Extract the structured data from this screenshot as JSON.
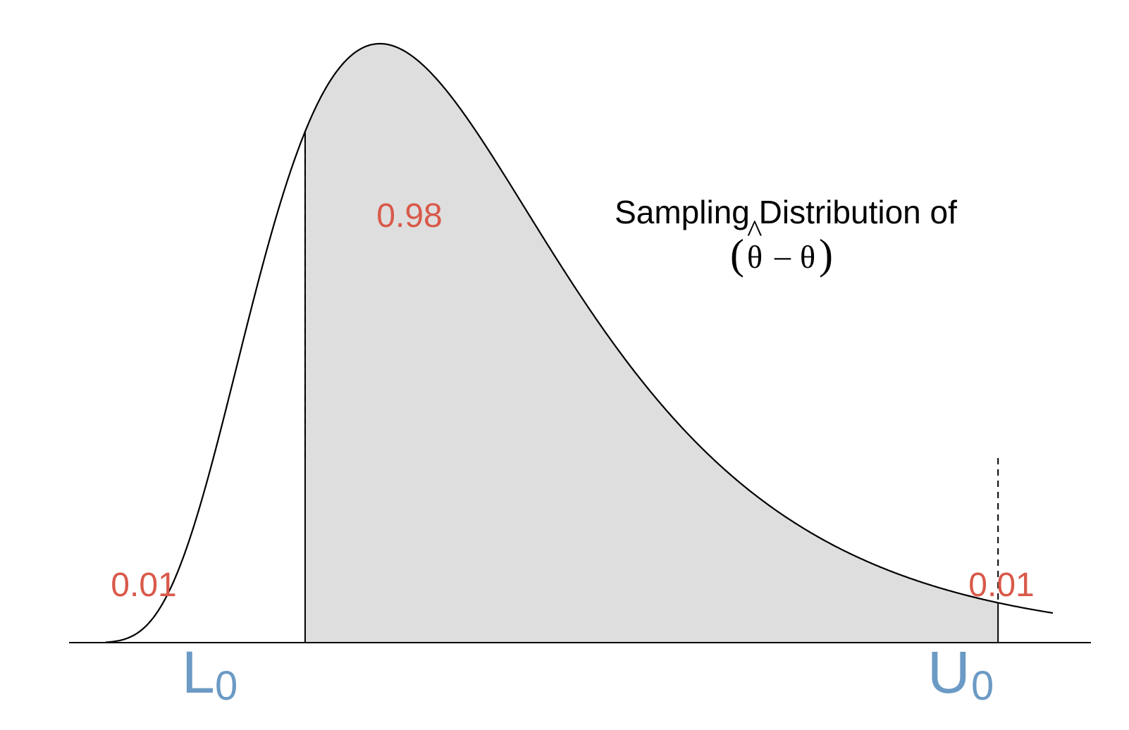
{
  "chart_data": {
    "type": "area",
    "title_line1": "Sampling Distribution of",
    "title_formula": {
      "open": "(",
      "hat": "^",
      "theta_hat": "θ",
      "minus": "–",
      "theta": "θ",
      "close": ")"
    },
    "distribution": "right-skewed density curve",
    "x_range": [
      -4,
      15
    ],
    "y_range": [
      0,
      1
    ],
    "mode_x": 1.5,
    "lower_bound": {
      "label": "L",
      "subscript": "0",
      "x": 0
    },
    "upper_bound": {
      "label": "U",
      "subscript": "0",
      "x": 13.9
    },
    "areas": {
      "middle": "0.98",
      "left_tail": "0.01",
      "right_tail": "0.01"
    },
    "colors": {
      "fill": "#dedede",
      "curve": "#000000",
      "area_labels": "#d9594a",
      "bound_labels": "#6b9ac4"
    },
    "grid": false,
    "legend": "none"
  }
}
